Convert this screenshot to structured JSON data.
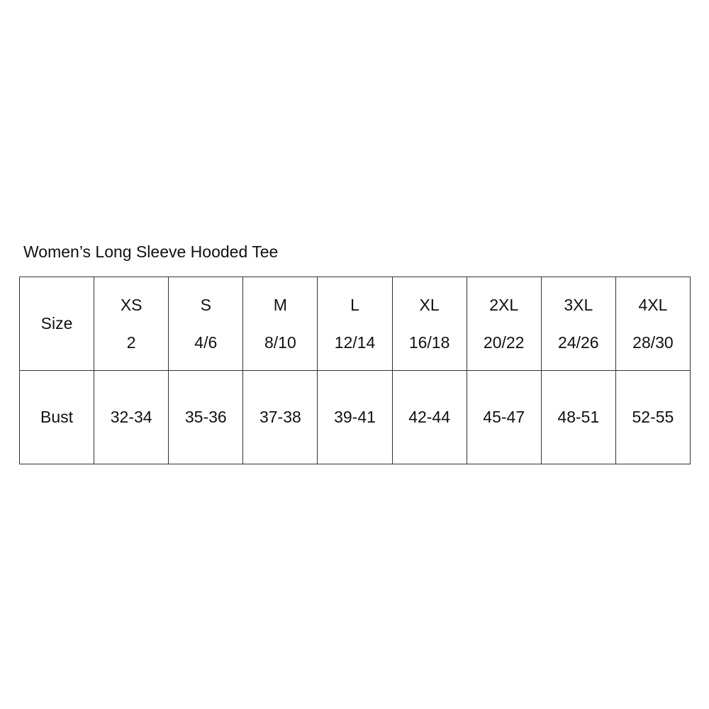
{
  "title": "Women’s Long Sleeve Hooded Tee",
  "table": {
    "size_label": "Size",
    "bust_label": "Bust",
    "columns": [
      {
        "size": "XS",
        "us": "2",
        "bust": "32-34"
      },
      {
        "size": "S",
        "us": "4/6",
        "bust": "35-36"
      },
      {
        "size": "M",
        "us": "8/10",
        "bust": "37-38"
      },
      {
        "size": "L",
        "us": "12/14",
        "bust": "39-41"
      },
      {
        "size": "XL",
        "us": "16/18",
        "bust": "42-44"
      },
      {
        "size": "2XL",
        "us": "20/22",
        "bust": "45-47"
      },
      {
        "size": "3XL",
        "us": "24/26",
        "bust": "48-51"
      },
      {
        "size": "4XL",
        "us": "28/30",
        "bust": "52-55"
      }
    ]
  }
}
